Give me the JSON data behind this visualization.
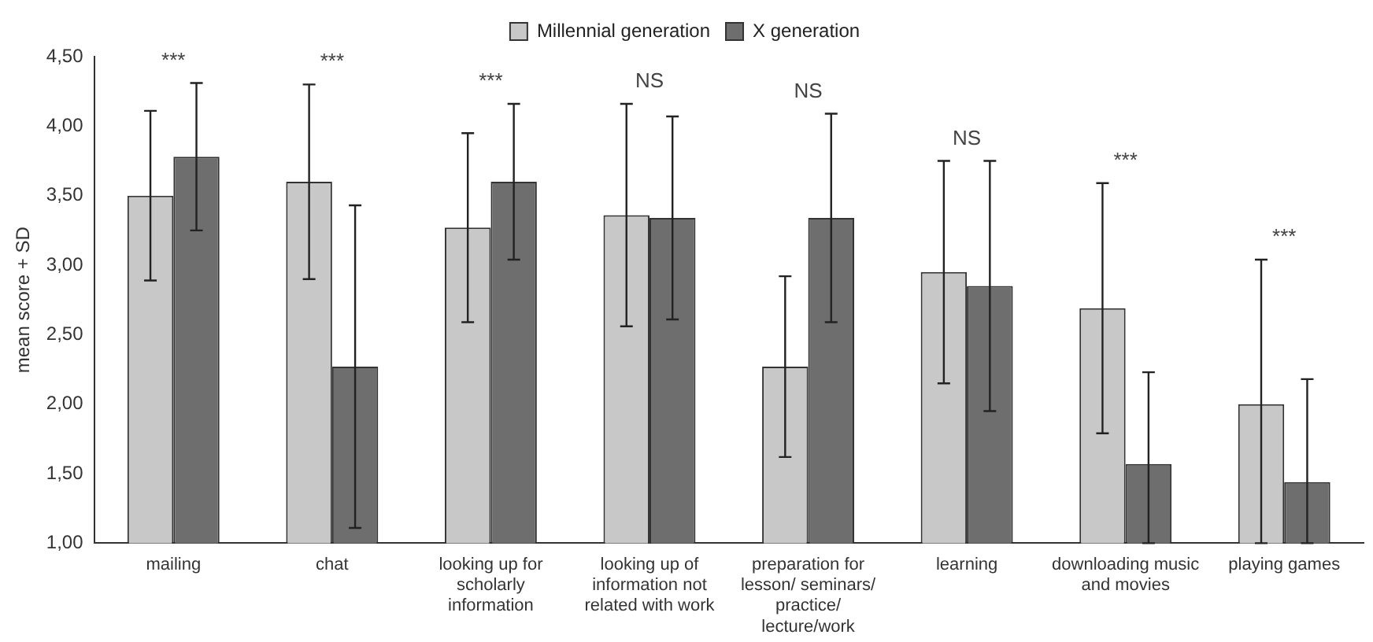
{
  "chart_data": {
    "type": "bar",
    "ylabel": "mean score + SD",
    "categories": [
      "mailing",
      "chat",
      "looking up for scholarly information",
      "looking up of information not related with work",
      "preparation for lesson/ seminars/ practice/ lecture/work",
      "learning",
      "downloading music and movies",
      "playing games"
    ],
    "series": [
      {
        "name": "Millennial generation",
        "color": "#c8c8c8",
        "values": [
          3.5,
          3.6,
          3.27,
          3.36,
          2.27,
          2.95,
          2.69,
          2.0
        ],
        "errors": [
          0.61,
          0.7,
          0.68,
          0.8,
          0.65,
          0.8,
          0.9,
          [
            1.0,
            3.04
          ]
        ]
      },
      {
        "name": "X generation",
        "color": "#6e6e6e",
        "values": [
          3.78,
          2.27,
          3.6,
          3.34,
          3.34,
          2.85,
          1.57,
          1.44
        ],
        "errors": [
          0.53,
          1.16,
          0.56,
          0.73,
          0.75,
          0.9,
          [
            1.0,
            2.23
          ],
          [
            1.0,
            2.18
          ]
        ]
      }
    ],
    "ylim": [
      1.0,
      4.5
    ],
    "yticks": [
      {
        "value": 1.0,
        "label": "1,00"
      },
      {
        "value": 1.5,
        "label": "1,50"
      },
      {
        "value": 2.0,
        "label": "2,00"
      },
      {
        "value": 2.5,
        "label": "2,50"
      },
      {
        "value": 3.0,
        "label": "3,00"
      },
      {
        "value": 3.5,
        "label": "3,50"
      },
      {
        "value": 4.0,
        "label": "4,00"
      },
      {
        "value": 4.5,
        "label": "4,50"
      }
    ],
    "grid": false,
    "legend": "top",
    "annotations": [
      "***",
      "***",
      "***",
      "NS",
      "NS",
      "NS",
      "***",
      "***"
    ]
  }
}
